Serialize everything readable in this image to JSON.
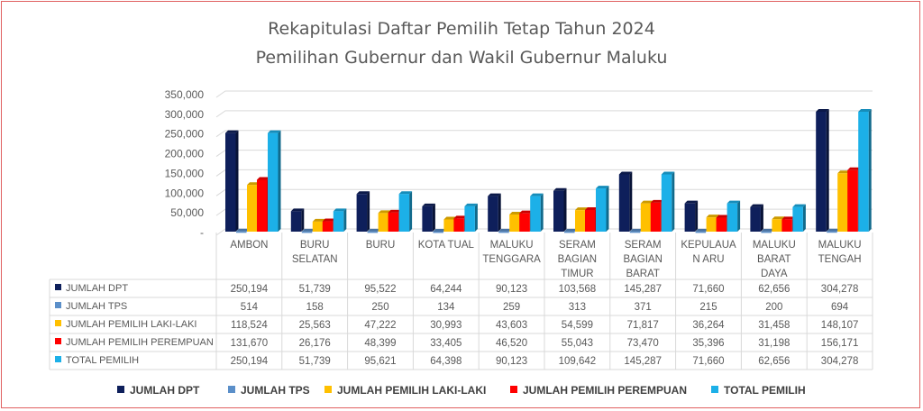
{
  "chart_data": {
    "type": "bar",
    "title": [
      "Rekapitulasi Daftar Pemilih Tetap Tahun 2024",
      "Pemilihan Gubernur dan Wakil Gubernur Maluku"
    ],
    "categories": [
      [
        "AMBON"
      ],
      [
        "BURU",
        "SELATAN"
      ],
      [
        "BURU"
      ],
      [
        "KOTA TUAL"
      ],
      [
        "MALUKU",
        "TENGGARA"
      ],
      [
        "SERAM",
        "BAGIAN",
        "TIMUR"
      ],
      [
        "SERAM",
        "BAGIAN",
        "BARAT"
      ],
      [
        "KEPULAUA",
        "N ARU"
      ],
      [
        "MALUKU",
        "BARAT",
        "DAYA"
      ],
      [
        "MALUKU",
        "TENGAH"
      ]
    ],
    "ylim": [
      0,
      350000
    ],
    "yticks": [
      "-",
      "50,000",
      "100,000",
      "150,000",
      "200,000",
      "250,000",
      "300,000",
      "350,000"
    ],
    "grid": true,
    "legend_position": "bottom",
    "series": [
      {
        "name": "JUMLAH DPT",
        "color": "#0e1f5b",
        "values": [
          250194,
          51739,
          95522,
          64244,
          90123,
          103568,
          145287,
          71660,
          62656,
          304278
        ],
        "labels": [
          "250,194",
          "51,739",
          "95,522",
          "64,244",
          "90,123",
          "103,568",
          "145,287",
          "71,660",
          "62,656",
          "304,278"
        ]
      },
      {
        "name": "JUMLAH TPS",
        "color": "#5b8fc9",
        "values": [
          514,
          158,
          250,
          134,
          259,
          313,
          371,
          215,
          200,
          694
        ],
        "labels": [
          "514",
          "158",
          "250",
          "134",
          "259",
          "313",
          "371",
          "215",
          "200",
          "694"
        ]
      },
      {
        "name": "JUMLAH PEMILIH LAKI-LAKI",
        "color": "#ffc000",
        "values": [
          118524,
          25563,
          47222,
          30993,
          43603,
          54599,
          71817,
          36264,
          31458,
          148107
        ],
        "labels": [
          "118,524",
          "25,563",
          "47,222",
          "30,993",
          "43,603",
          "54,599",
          "71,817",
          "36,264",
          "31,458",
          "148,107"
        ]
      },
      {
        "name": "JUMLAH PEMILIH PEREMPUAN",
        "color": "#ff0000",
        "values": [
          131670,
          26176,
          48399,
          33405,
          46520,
          55043,
          73470,
          35396,
          31198,
          156171
        ],
        "labels": [
          "131,670",
          "26,176",
          "48,399",
          "33,405",
          "46,520",
          "55,043",
          "73,470",
          "35,396",
          "31,198",
          "156,171"
        ]
      },
      {
        "name": "TOTAL PEMILIH",
        "color": "#1cb0e8",
        "values": [
          250194,
          51739,
          95621,
          64398,
          90123,
          109642,
          145287,
          71660,
          62656,
          304278
        ],
        "labels": [
          "250,194",
          "51,739",
          "95,621",
          "64,398",
          "90,123",
          "109,642",
          "145,287",
          "71,660",
          "62,656",
          "304,278"
        ]
      }
    ]
  }
}
